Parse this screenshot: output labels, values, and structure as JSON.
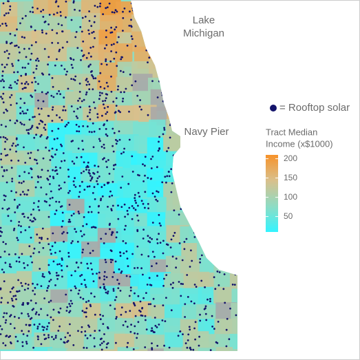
{
  "map": {
    "water_label": [
      "Lake",
      "Michigan"
    ],
    "pier_label": "Navy Pier",
    "points_legend": "= Rooftop solar",
    "points_color": "#14146b",
    "legend": {
      "title": [
        "Tract Median",
        "Income (x$1000)"
      ],
      "lim": [
        10,
        210
      ],
      "ticks": [
        50,
        100,
        150,
        200
      ],
      "colors": [
        "#33f4ff",
        "#8edcc4",
        "#d9c08c",
        "#f7922a"
      ]
    }
  }
}
